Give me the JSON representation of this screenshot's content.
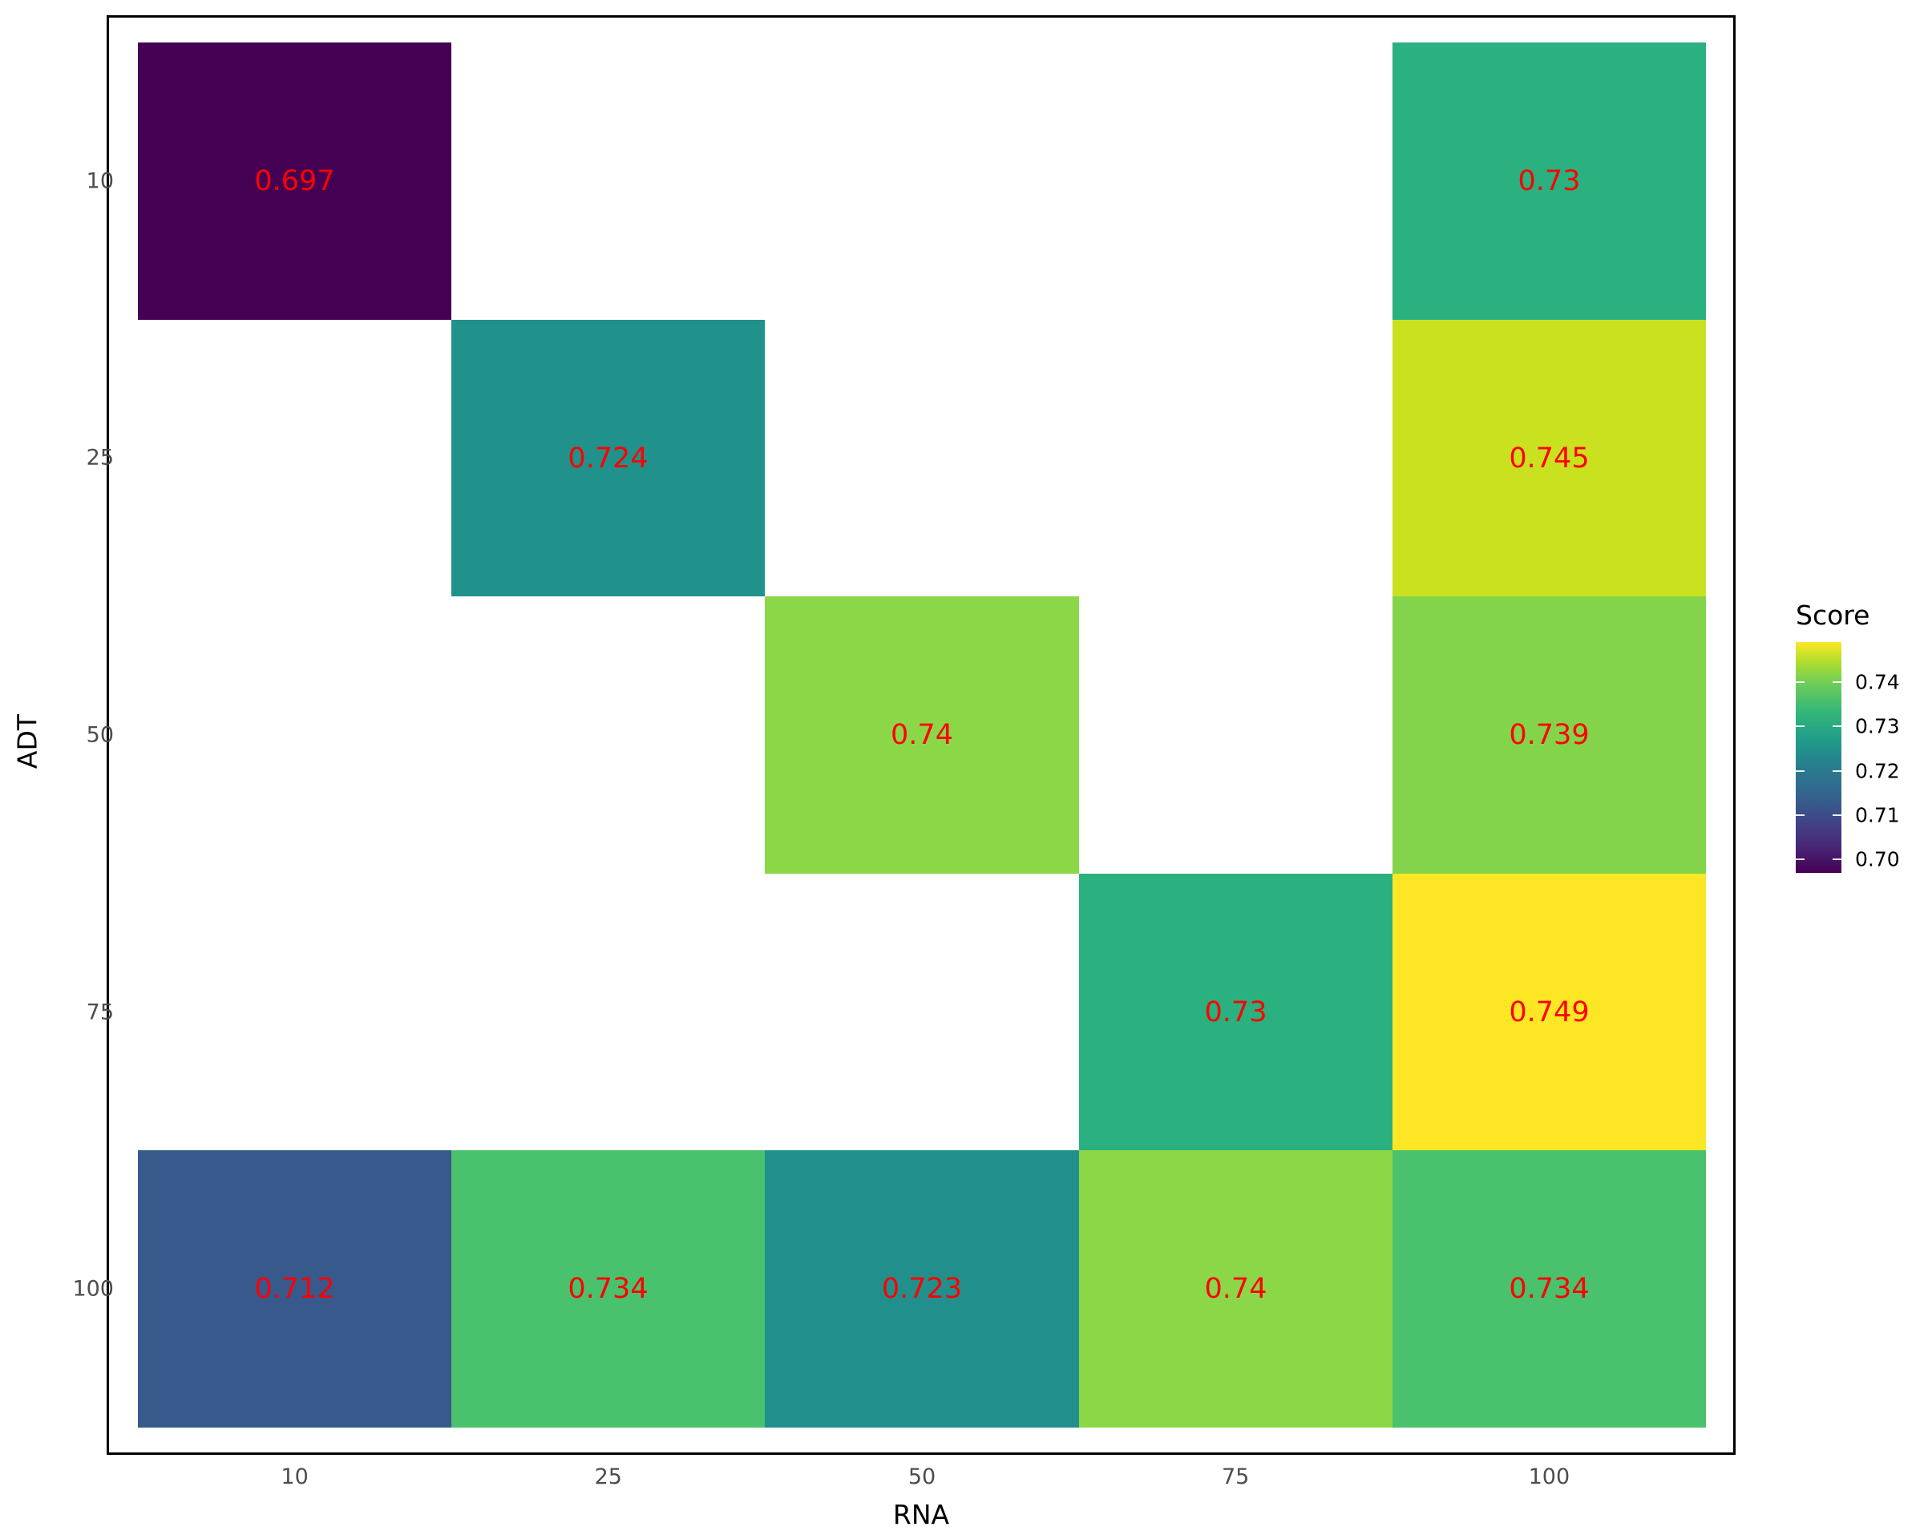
{
  "chart_data": {
    "type": "heatmap",
    "title": "",
    "xlabel": "RNA",
    "ylabel": "ADT",
    "x_categories": [
      "10",
      "25",
      "50",
      "75",
      "100"
    ],
    "y_categories": [
      "10",
      "25",
      "50",
      "75",
      "100"
    ],
    "cells": [
      {
        "x": "10",
        "y": "10",
        "value": 0.697,
        "label": "0.697",
        "color": "#440154"
      },
      {
        "x": "100",
        "y": "10",
        "value": 0.73,
        "label": "0.73",
        "color": "#2BB07F"
      },
      {
        "x": "25",
        "y": "25",
        "value": 0.724,
        "label": "0.724",
        "color": "#21918C"
      },
      {
        "x": "100",
        "y": "25",
        "value": 0.745,
        "label": "0.745",
        "color": "#CAE11F"
      },
      {
        "x": "50",
        "y": "50",
        "value": 0.74,
        "label": "0.74",
        "color": "#8CD748"
      },
      {
        "x": "100",
        "y": "50",
        "value": 0.739,
        "label": "0.739",
        "color": "#84D44B"
      },
      {
        "x": "75",
        "y": "75",
        "value": 0.73,
        "label": "0.73",
        "color": "#2BB07F"
      },
      {
        "x": "100",
        "y": "75",
        "value": 0.749,
        "label": "0.749",
        "color": "#FDE725"
      },
      {
        "x": "10",
        "y": "100",
        "value": 0.712,
        "label": "0.712",
        "color": "#38598C"
      },
      {
        "x": "25",
        "y": "100",
        "value": 0.734,
        "label": "0.734",
        "color": "#4AC16D"
      },
      {
        "x": "50",
        "y": "100",
        "value": 0.723,
        "label": "0.723",
        "color": "#21908C"
      },
      {
        "x": "75",
        "y": "100",
        "value": 0.74,
        "label": "0.74",
        "color": "#8CD748"
      },
      {
        "x": "100",
        "y": "100",
        "value": 0.734,
        "label": "0.734",
        "color": "#4AC16D"
      }
    ],
    "legend": {
      "title": "Score",
      "position": "right",
      "colormap": "viridis",
      "ticks": [
        "0.70",
        "0.71",
        "0.72",
        "0.73",
        "0.74"
      ],
      "range": [
        0.697,
        0.749
      ]
    },
    "cell_label_color": "#FF0000",
    "grid": false
  }
}
